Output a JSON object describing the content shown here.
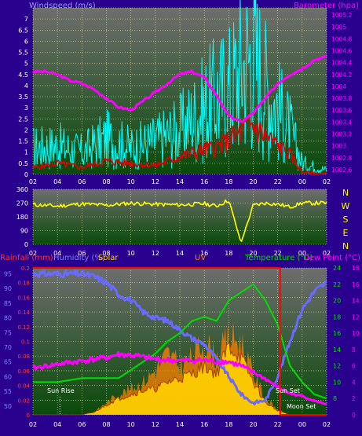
{
  "colors": {
    "background": "#2a008e",
    "plot_top": "#6e6e6e",
    "plot_bottom": "#0a4a0a",
    "grid": "#e6e6a0",
    "wind_speed": "#00ffff",
    "wind_avg": "#e00000",
    "barometer": "#ff00ff",
    "wind_dir": "#ffff00",
    "humidity": "#6a6aff",
    "temperature": "#00dd00",
    "rain": "#ff0000",
    "solar": "#ffd000",
    "uv": "#ff8000",
    "dewpoint": "#ff00ff",
    "axis_left_top": "#ffffff",
    "title_wind": "#9999ff",
    "title_baro": "#ff00ff"
  },
  "chart_data": [
    {
      "type": "line",
      "title_left": "Windspeed (m/s)",
      "title_right": "Barometer (hpa)",
      "x_ticks": [
        "02",
        "04",
        "06",
        "08",
        "10",
        "12",
        "14",
        "16",
        "18",
        "20",
        "22",
        "00",
        "02"
      ],
      "y_left_ticks": [
        "0",
        "0.5",
        "1",
        "1.5",
        "2",
        "2.5",
        "3",
        "3.5",
        "4",
        "4.5",
        "5",
        "5.5",
        "6",
        "6.5",
        "7"
      ],
      "ylim_left": [
        0,
        7.5
      ],
      "y_right_ticks": [
        "1002.6",
        "1002.8",
        "1003",
        "1003.2",
        "1003.4",
        "1003.6",
        "1003.8",
        "1004",
        "1004.2",
        "1004.4",
        "1004.6",
        "1004.8",
        "1005",
        "1005.2"
      ],
      "ylim_right": [
        1002.52,
        1005.32
      ],
      "series": [
        {
          "name": "Windspeed",
          "x": [
            0,
            2,
            4,
            6,
            8,
            10,
            12,
            14,
            15,
            16,
            17,
            18,
            19,
            20,
            21,
            22,
            24
          ],
          "values": [
            1.2,
            1.3,
            1.0,
            1.6,
            1.2,
            1.5,
            2.0,
            3.0,
            3.5,
            3.8,
            4.8,
            5.5,
            4.0,
            3.0,
            2.0,
            0.5,
            0.2
          ]
        },
        {
          "name": "Average",
          "x": [
            0,
            2,
            4,
            6,
            8,
            10,
            12,
            14,
            15,
            16,
            17,
            18,
            19,
            20,
            21,
            22,
            24
          ],
          "values": [
            0.3,
            0.5,
            0.3,
            0.6,
            0.5,
            0.4,
            0.8,
            1.1,
            1.2,
            1.5,
            1.9,
            2.2,
            1.7,
            1.3,
            0.9,
            0.1,
            0.0
          ]
        },
        {
          "name": "Barometer",
          "x": [
            0,
            1,
            2,
            3,
            4,
            5,
            6,
            7,
            8,
            9,
            10,
            11,
            12,
            13,
            14,
            15,
            16,
            17,
            18,
            19,
            20,
            21,
            22,
            23,
            24
          ],
          "values": [
            1004.25,
            1004.25,
            1004.2,
            1004.1,
            1004.05,
            1003.95,
            1003.8,
            1003.65,
            1003.6,
            1003.75,
            1003.9,
            1004.05,
            1004.2,
            1004.25,
            1004.15,
            1003.85,
            1003.5,
            1003.4,
            1003.55,
            1003.8,
            1004.05,
            1004.2,
            1004.3,
            1004.45,
            1004.5
          ]
        }
      ]
    },
    {
      "type": "line",
      "x_ticks": [
        "02",
        "04",
        "06",
        "08",
        "10",
        "12",
        "14",
        "16",
        "18",
        "20",
        "22",
        "00",
        "02"
      ],
      "y_ticks": [
        "0",
        "90",
        "180",
        "270",
        "360"
      ],
      "ylim": [
        0,
        360
      ],
      "compass": [
        "N",
        "W",
        "S",
        "E",
        "N"
      ],
      "series": [
        {
          "name": "Wind direction",
          "x": [
            0,
            2,
            4,
            6,
            8,
            10,
            12,
            14,
            15,
            16,
            17,
            18,
            19,
            20,
            21,
            22,
            24
          ],
          "values": [
            260,
            250,
            265,
            255,
            270,
            262,
            258,
            266,
            250,
            290,
            10,
            255,
            270,
            262,
            245,
            270,
            270
          ]
        }
      ]
    },
    {
      "type": "line",
      "titles": [
        "Rainfall (mm)",
        "Humidity (%)",
        "Solar",
        "UV",
        "Temperature (°C)",
        "Dew Point (°C)"
      ],
      "x_ticks": [
        "02",
        "04",
        "06",
        "08",
        "10",
        "12",
        "14",
        "16",
        "18",
        "20",
        "22",
        "00",
        "02"
      ],
      "y_humidity_ticks": [
        "50",
        "55",
        "60",
        "65",
        "70",
        "75",
        "80",
        "85",
        "90",
        "95"
      ],
      "ylim_humidity": [
        47,
        97
      ],
      "y_rain_ticks": [
        "0",
        "0.02",
        "0.04",
        "0.06",
        "0.08",
        "0.1",
        "0.12",
        "0.14",
        "0.16",
        "0.18",
        "0.2"
      ],
      "ylim_rain": [
        0,
        0.2
      ],
      "y_temp_ticks": [
        "8",
        "10",
        "12",
        "14",
        "16",
        "18",
        "20",
        "22",
        "24"
      ],
      "ylim_temp": [
        6,
        24
      ],
      "y_uv_ticks": [
        "0",
        "2",
        "4",
        "6",
        "8",
        "10",
        "12",
        "14",
        "16",
        "18"
      ],
      "ylim_uv": [
        0,
        18
      ],
      "annotations": [
        "Sun Rise",
        "Sun Set",
        "Moon Set"
      ],
      "series": [
        {
          "name": "Humidity",
          "x": [
            0,
            2,
            4,
            5,
            6,
            7,
            8,
            9,
            10,
            11,
            12,
            13,
            14,
            15,
            16,
            17,
            18,
            19,
            20,
            21,
            22,
            23,
            24
          ],
          "values": [
            95,
            95,
            95,
            94,
            92,
            88,
            86,
            82,
            80,
            79,
            76,
            73,
            71,
            66,
            60,
            54,
            51,
            52,
            60,
            72,
            83,
            89,
            92
          ]
        },
        {
          "name": "Temperature",
          "x": [
            0,
            2,
            4,
            6,
            7,
            8,
            9,
            10,
            11,
            12,
            13,
            14,
            15,
            16,
            17,
            18,
            19,
            20,
            21,
            22,
            23,
            24
          ],
          "values": [
            10,
            10,
            10.5,
            10.5,
            10.5,
            11.5,
            12.5,
            13.5,
            15,
            16,
            17.5,
            18,
            17.5,
            20,
            21,
            22,
            20,
            17,
            12,
            10,
            8.5,
            8
          ]
        },
        {
          "name": "Dew Point",
          "x": [
            0,
            2,
            4,
            6,
            7,
            8,
            10,
            12,
            14,
            15,
            16,
            17,
            18,
            19,
            20,
            21,
            22,
            23,
            24
          ],
          "values": [
            5.7,
            6.2,
            6.6,
            7.0,
            7.4,
            7.3,
            6.8,
            6.6,
            6.7,
            6.5,
            6.5,
            6.0,
            5.2,
            4.4,
            3.4,
            2.6,
            2.3,
            1.7,
            1.3
          ]
        },
        {
          "name": "Solar",
          "x": [
            0,
            4,
            5,
            6,
            7,
            8,
            9,
            10,
            11,
            12,
            13,
            14,
            15,
            16,
            17,
            18,
            19,
            20,
            21,
            24
          ],
          "values": [
            0,
            0,
            0.3,
            1.2,
            2.0,
            2.5,
            3.0,
            3.2,
            4.0,
            4.5,
            5.0,
            6.0,
            5.0,
            8.5,
            7.0,
            4.0,
            1.5,
            0.5,
            0,
            0
          ]
        },
        {
          "name": "UV",
          "x": [
            0,
            4,
            5,
            6,
            7,
            8,
            9,
            10,
            11,
            12,
            13,
            14,
            15,
            16,
            17,
            18,
            19,
            20,
            21,
            24
          ],
          "values": [
            0,
            0,
            0.3,
            1.5,
            2.5,
            3.2,
            4.0,
            5.5,
            7.5,
            6.0,
            7.0,
            9.0,
            7.0,
            9.5,
            9.0,
            5.0,
            2.0,
            0.6,
            0,
            0
          ]
        },
        {
          "name": "Rainfall",
          "x": [
            0,
            20.2,
            20.2,
            24
          ],
          "values": [
            0.2,
            0.2,
            0,
            0
          ]
        }
      ]
    }
  ]
}
